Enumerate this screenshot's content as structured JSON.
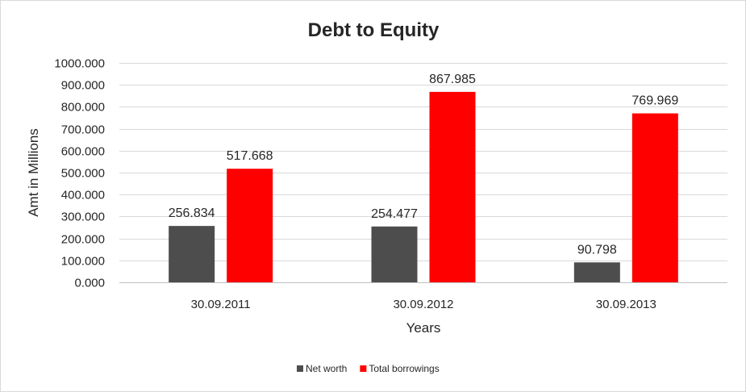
{
  "chart_data": {
    "type": "bar",
    "title": "Debt to Equity",
    "xlabel": "Years",
    "ylabel": "Amt in Millions",
    "categories": [
      "30.09.2011",
      "30.09.2012",
      "30.09.2013"
    ],
    "series": [
      {
        "name": "Net worth",
        "color": "#4d4d4d",
        "values": [
          256.834,
          254.477,
          90.798
        ],
        "labels": [
          "256.834",
          "254.477",
          "90.798"
        ]
      },
      {
        "name": "Total borrowings",
        "color": "#ff0000",
        "values": [
          517.668,
          867.985,
          769.969
        ],
        "labels": [
          "517.668",
          "867.985",
          "769.969"
        ]
      }
    ],
    "ylim": [
      0,
      1000
    ],
    "yticks": [
      0,
      100,
      200,
      300,
      400,
      500,
      600,
      700,
      800,
      900,
      1000
    ],
    "ytick_labels": [
      "0.000",
      "100.000",
      "200.000",
      "300.000",
      "400.000",
      "500.000",
      "600.000",
      "700.000",
      "800.000",
      "900.000",
      "1000.000"
    ],
    "grid": true,
    "legend": "bottom"
  }
}
